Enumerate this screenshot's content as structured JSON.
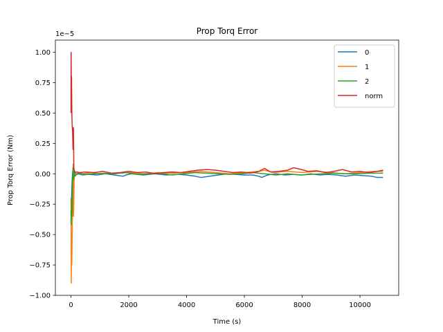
{
  "chart_data": {
    "type": "line",
    "title": "Prop Torq Error",
    "xlabel": "Time (s)",
    "ylabel": "Prop Torq Error (Nm)",
    "y_offset_text": "1e−5",
    "xlim": [
      -540,
      11340
    ],
    "ylim": [
      -1e-05,
      1.1e-05
    ],
    "xticks": [
      0,
      2000,
      4000,
      6000,
      8000,
      10000
    ],
    "xtick_labels": [
      "0",
      "2000",
      "4000",
      "6000",
      "8000",
      "10000"
    ],
    "yticks": [
      -1e-05,
      -7.5e-06,
      -5e-06,
      -2.5e-06,
      0,
      2.5e-06,
      5e-06,
      7.5e-06,
      1e-05
    ],
    "ytick_labels": [
      "−1.00",
      "−0.75",
      "−0.50",
      "−0.25",
      "0.00",
      "0.25",
      "0.50",
      "0.75",
      "1.00"
    ],
    "grid": false,
    "legend_position": "top-right",
    "series": [
      {
        "name": "0",
        "color": "#1f77b4",
        "x": [
          0,
          10,
          25,
          40,
          60,
          80,
          100,
          130,
          170,
          250,
          400,
          600,
          900,
          1200,
          1500,
          1800,
          1900,
          2100,
          2500,
          2900,
          3300,
          3700,
          4000,
          4300,
          4500,
          4800,
          5100,
          5400,
          5700,
          6000,
          6300,
          6500,
          6600,
          6800,
          7100,
          7400,
          7700,
          8000,
          8300,
          8600,
          8900,
          9200,
          9500,
          9800,
          10100,
          10400,
          10600,
          10800
        ],
        "y": [
          -4e-06,
          -3e-06,
          -1.5e-06,
          -5e-07,
          2e-07,
          -3e-07,
          1e-07,
          -2e-07,
          -1e-07,
          0.0,
          -1e-07,
          -5e-08,
          -1e-07,
          0.0,
          -1e-07,
          -2e-07,
          -1e-07,
          0.0,
          -1e-07,
          0.0,
          -1e-07,
          -5e-08,
          -1e-07,
          -2e-07,
          -3e-07,
          -2e-07,
          -1e-07,
          0.0,
          -5e-08,
          -1e-07,
          -1e-07,
          -2e-07,
          -3e-07,
          -1e-07,
          0.0,
          -1e-07,
          -5e-08,
          -1e-07,
          0.0,
          -1e-07,
          -5e-08,
          -1e-07,
          -2e-07,
          -1e-07,
          -1.5e-07,
          -2e-07,
          -3e-07,
          -3e-07
        ]
      },
      {
        "name": "1",
        "color": "#ff7f0e",
        "x": [
          0,
          10,
          20,
          30,
          45,
          60,
          75,
          90,
          110,
          140,
          180,
          250,
          400,
          700,
          1000,
          1500,
          2000,
          2500,
          3000,
          3500,
          4000,
          4500,
          5000,
          5500,
          6000,
          6500,
          6700,
          7000,
          7500,
          8000,
          8500,
          9000,
          9500,
          10000,
          10500,
          10800
        ],
        "y": [
          -2e-06,
          -9e-06,
          -6e-06,
          -7.5e-06,
          -4e-06,
          -2e-06,
          8e-07,
          -3.5e-06,
          -5e-07,
          2e-07,
          -1e-07,
          1e-07,
          0.0,
          1e-07,
          0.0,
          5e-08,
          1e-07,
          0.0,
          1e-07,
          5e-08,
          1e-07,
          2e-07,
          1e-07,
          0.0,
          1e-07,
          2e-07,
          3e-07,
          1e-07,
          2e-07,
          1e-07,
          2e-07,
          1e-07,
          0.0,
          1e-07,
          2e-07,
          2e-07
        ]
      },
      {
        "name": "2",
        "color": "#2ca02c",
        "x": [
          0,
          10,
          20,
          35,
          50,
          70,
          90,
          110,
          140,
          200,
          300,
          500,
          800,
          1100,
          1500,
          1900,
          2300,
          2700,
          3100,
          3500,
          3900,
          4300,
          4700,
          5100,
          5500,
          5900,
          6300,
          6700,
          7100,
          7500,
          7900,
          8300,
          8700,
          9100,
          9500,
          9900,
          10300,
          10800
        ],
        "y": [
          -3e-06,
          -4.2e-06,
          -2e-06,
          -3.5e-06,
          -1e-06,
          5e-07,
          -5e-07,
          2e-07,
          -2e-07,
          0.0,
          5e-08,
          -5e-08,
          0.0,
          5e-08,
          0.0,
          1e-07,
          -5e-08,
          0.0,
          5e-08,
          -1e-07,
          0.0,
          1e-07,
          5e-08,
          0.0,
          -5e-08,
          0.0,
          1e-07,
          0.0,
          -1e-07,
          0.0,
          -1e-07,
          -5e-08,
          0.0,
          5e-08,
          0.0,
          0.0,
          5e-08,
          5e-08
        ]
      },
      {
        "name": "norm",
        "color": "#d62728",
        "x": [
          0,
          5,
          12,
          20,
          30,
          40,
          55,
          70,
          85,
          100,
          120,
          150,
          200,
          300,
          500,
          800,
          1100,
          1400,
          1700,
          2000,
          2300,
          2600,
          2900,
          3200,
          3500,
          3800,
          4100,
          4400,
          4700,
          5000,
          5300,
          5600,
          5900,
          6200,
          6500,
          6700,
          6900,
          7200,
          7500,
          7700,
          7900,
          8200,
          8500,
          8800,
          9100,
          9400,
          9700,
          10000,
          10300,
          10600,
          10800
        ],
        "y": [
          5e-06,
          1e-05,
          7e-06,
          8e-06,
          5e-06,
          4e-06,
          3.5e-06,
          2e-06,
          3.8e-06,
          5e-07,
          2e-07,
          1e-07,
          1.5e-07,
          1e-07,
          1.5e-07,
          1e-07,
          2e-07,
          5e-08,
          1e-07,
          2e-07,
          1e-07,
          1.5e-07,
          0.0,
          1e-07,
          1.5e-07,
          1e-07,
          2e-07,
          3e-07,
          3.5e-07,
          3e-07,
          2e-07,
          1e-07,
          1.5e-07,
          5e-08,
          2e-07,
          4.5e-07,
          1.5e-07,
          2e-07,
          3e-07,
          5e-07,
          4e-07,
          2e-07,
          2.5e-07,
          1e-07,
          2e-07,
          3.5e-07,
          1.5e-07,
          2e-07,
          1e-07,
          2e-07,
          3e-07
        ]
      }
    ]
  }
}
